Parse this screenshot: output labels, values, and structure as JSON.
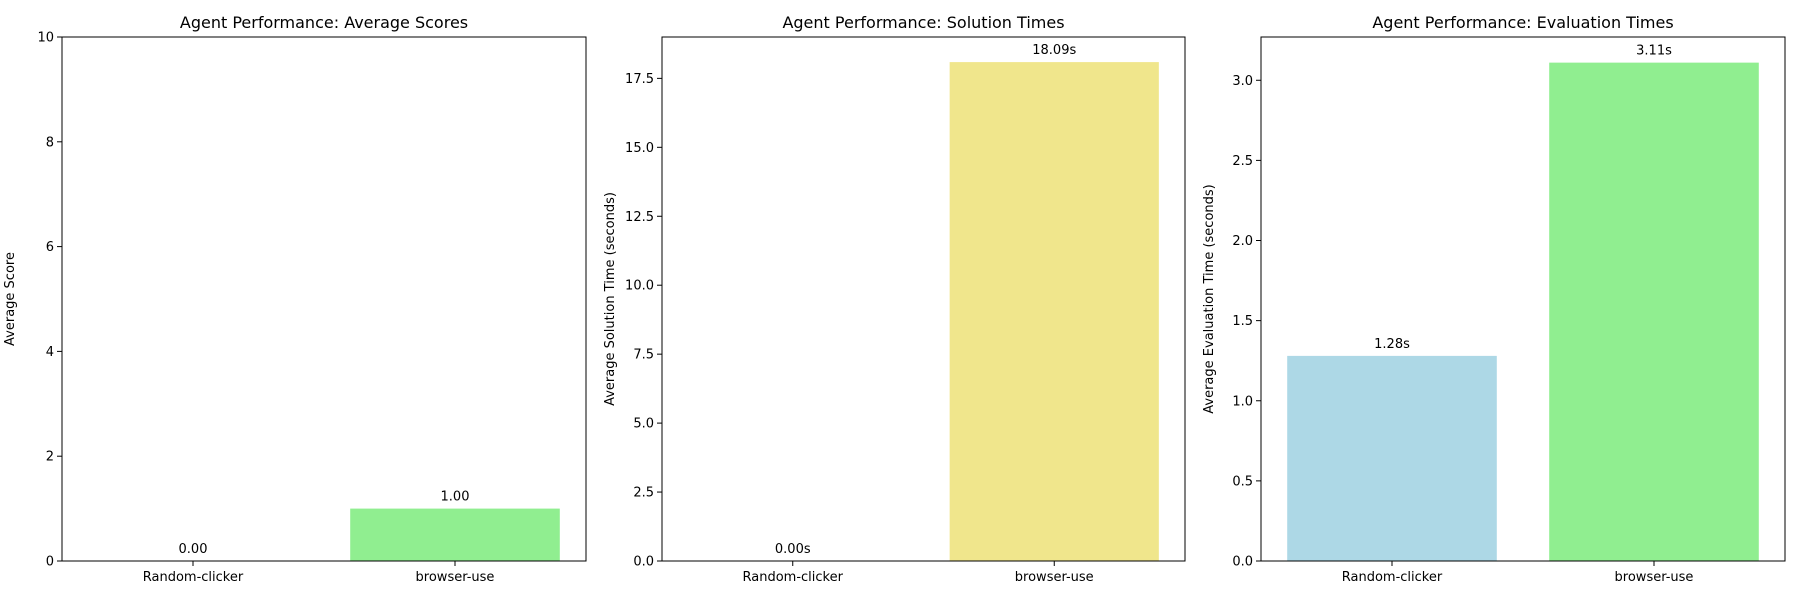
{
  "chart_data": [
    {
      "type": "bar",
      "title": "Agent Performance: Average Scores",
      "xlabel": "",
      "ylabel": "Average Score",
      "categories": [
        "Random-clicker",
        "browser-use"
      ],
      "values": [
        0.0,
        1.0
      ],
      "value_labels": [
        "0.00",
        "1.00"
      ],
      "colors": [
        "#add8e6",
        "#90ee90"
      ],
      "ylim": [
        0,
        10
      ],
      "yticks": [
        0,
        2,
        4,
        6,
        8,
        10
      ],
      "ytick_labels": [
        "0",
        "2",
        "4",
        "6",
        "8",
        "10"
      ],
      "grid": false
    },
    {
      "type": "bar",
      "title": "Agent Performance: Solution Times",
      "xlabel": "",
      "ylabel": "Average Solution Time (seconds)",
      "categories": [
        "Random-clicker",
        "browser-use"
      ],
      "values": [
        0.0,
        18.09
      ],
      "value_labels": [
        "0.00s",
        "18.09s"
      ],
      "colors": [
        "#add8e6",
        "#f0e68c"
      ],
      "ylim": [
        0,
        19.0
      ],
      "yticks": [
        0,
        2.5,
        5,
        7.5,
        10,
        12.5,
        15,
        17.5
      ],
      "ytick_labels": [
        "0.0",
        "2.5",
        "5.0",
        "7.5",
        "10.0",
        "12.5",
        "15.0",
        "17.5"
      ],
      "grid": false
    },
    {
      "type": "bar",
      "title": "Agent Performance: Evaluation Times",
      "xlabel": "",
      "ylabel": "Average Evaluation Time (seconds)",
      "categories": [
        "Random-clicker",
        "browser-use"
      ],
      "values": [
        1.28,
        3.11
      ],
      "value_labels": [
        "1.28s",
        "3.11s"
      ],
      "colors": [
        "#add8e6",
        "#90ee90"
      ],
      "ylim": [
        0,
        3.27
      ],
      "yticks": [
        0,
        0.5,
        1,
        1.5,
        2,
        2.5,
        3
      ],
      "ytick_labels": [
        "0.0",
        "0.5",
        "1.0",
        "1.5",
        "2.0",
        "2.5",
        "3.0"
      ],
      "grid": false
    }
  ]
}
